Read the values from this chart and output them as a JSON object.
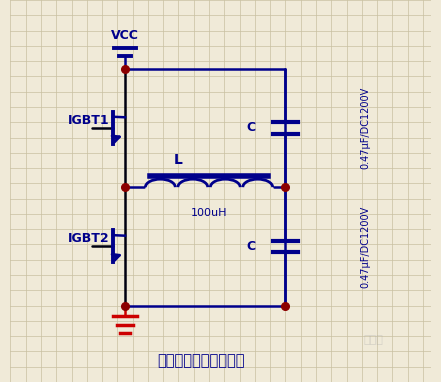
{
  "bg_color": "#f0ead8",
  "grid_color": "#c8c0a0",
  "line_color": "#00008B",
  "wire_color": "#000010",
  "node_color": "#8B0000",
  "label_color": "#00008B",
  "title_text": "电磁炉半桥主电路结构",
  "title_color": "#00008B",
  "vcc_label": "VCC",
  "igbt1_label": "IGBT1",
  "igbt2_label": "IGBT2",
  "L_label": "L",
  "L_value": "100uH",
  "C_label": "C",
  "cap_label": "0.47μF/DC1200V",
  "cap_label2": "0.47μF/DC1200V",
  "ground_color": "#cc0000",
  "figsize": [
    4.41,
    3.82
  ],
  "dpi": 100,
  "xlim": [
    0,
    11
  ],
  "ylim": [
    0,
    10
  ]
}
